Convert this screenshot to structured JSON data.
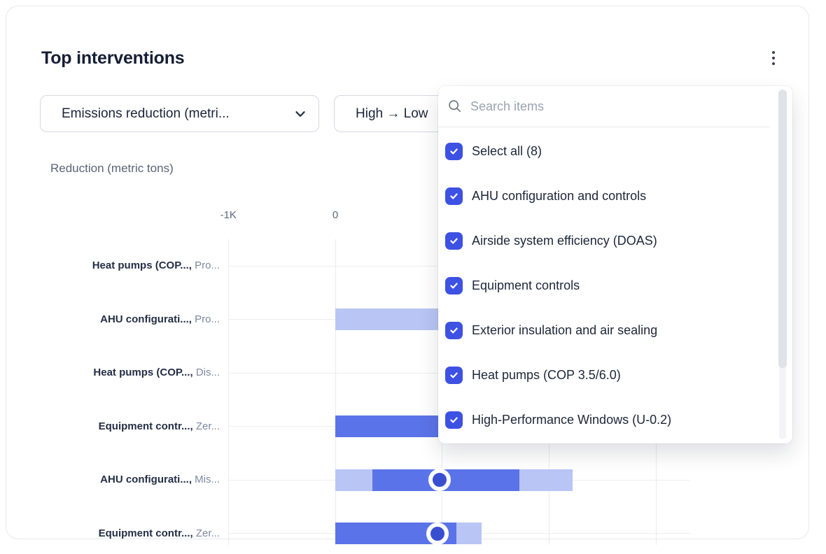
{
  "card": {
    "title": "Top interventions"
  },
  "filters": {
    "metric_select": {
      "label": "Emissions reduction (metri..."
    },
    "sort_select": {
      "label": "High → Low"
    }
  },
  "dropdown": {
    "search_placeholder": "Search items",
    "items": [
      {
        "label": "Select all (8)",
        "checked": true
      },
      {
        "label": "AHU configuration and controls",
        "checked": true
      },
      {
        "label": "Airside system efficiency (DOAS)",
        "checked": true
      },
      {
        "label": "Equipment controls",
        "checked": true
      },
      {
        "label": "Exterior insulation and air sealing",
        "checked": true
      },
      {
        "label": "Heat pumps (COP 3.5/6.0)",
        "checked": true
      },
      {
        "label": "High-Performance Windows (U-0.2)",
        "checked": true
      }
    ]
  },
  "chart_data": {
    "type": "bar",
    "subtype": "horizontal range bars with median marker",
    "title": "Reduction (metric tons)",
    "xlabel": "Reduction (metric tons)",
    "x_unit": "thousands of metric tons",
    "x_ticks": [
      {
        "value": -1,
        "label": "-1K"
      },
      {
        "value": 0,
        "label": "0"
      },
      {
        "value": 1,
        "label": ""
      },
      {
        "value": 2,
        "label": ""
      },
      {
        "value": 3,
        "label": ""
      }
    ],
    "rows": [
      {
        "label": "Heat pumps (COP...,",
        "sub": "Pro...",
        "bar": null
      },
      {
        "label": "AHU configurati...,",
        "sub": "Pro...",
        "bar": {
          "range": [
            0,
            1.5
          ]
        }
      },
      {
        "label": "Heat pumps (COP...,",
        "sub": "Dis...",
        "bar": null
      },
      {
        "label": "Equipment contr...,",
        "sub": "Zer...",
        "bar": {
          "inner": [
            0,
            1.5
          ]
        }
      },
      {
        "label": "AHU configurati...,",
        "sub": "Mis...",
        "bar": {
          "range": [
            0,
            2.22
          ],
          "inner": [
            0.35,
            1.72
          ],
          "marker": 0.975
        }
      },
      {
        "label": "Equipment contr...,",
        "sub": "Zer...",
        "bar": {
          "range": [
            0,
            1.37
          ],
          "inner": [
            0,
            1.13
          ],
          "marker": 0.955
        }
      }
    ]
  },
  "colors": {
    "bar_light": "#b9c5f5",
    "bar_dark": "#5b73e8",
    "marker_fill": "#3a4fd0",
    "accent_checkbox": "#3d51e3"
  }
}
